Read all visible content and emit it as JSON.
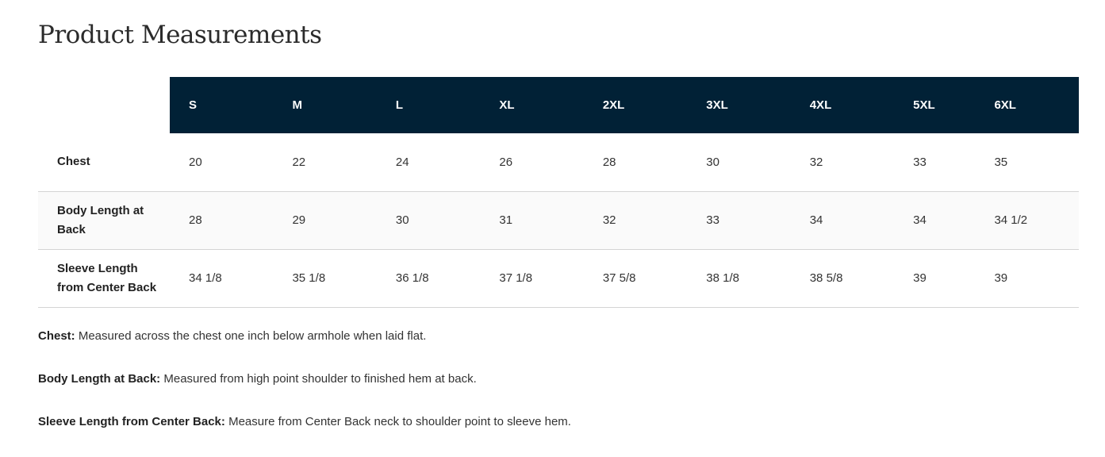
{
  "title": "Product Measurements",
  "colors": {
    "header_bg": "#012136",
    "header_text": "#ffffff"
  },
  "table": {
    "sizes": [
      "S",
      "M",
      "L",
      "XL",
      "2XL",
      "3XL",
      "4XL",
      "5XL",
      "6XL"
    ],
    "rows": [
      {
        "label": "Chest",
        "values": [
          "20",
          "22",
          "24",
          "26",
          "28",
          "30",
          "32",
          "33",
          "35"
        ]
      },
      {
        "label": "Body Length at Back",
        "values": [
          "28",
          "29",
          "30",
          "31",
          "32",
          "33",
          "34",
          "34",
          "34 1/2"
        ]
      },
      {
        "label": "Sleeve Length from Center Back",
        "values": [
          "34 1/8",
          "35 1/8",
          "36 1/8",
          "37 1/8",
          "37 5/8",
          "38 1/8",
          "38 5/8",
          "39",
          "39"
        ]
      }
    ]
  },
  "notes": [
    {
      "term": "Chest:",
      "text": " Measured across the chest one inch below armhole when laid flat."
    },
    {
      "term": "Body Length at Back:",
      "text": " Measured from high point shoulder to finished hem at back."
    },
    {
      "term": "Sleeve Length from Center Back:",
      "text": " Measure from Center Back neck to shoulder point to sleeve hem."
    }
  ]
}
